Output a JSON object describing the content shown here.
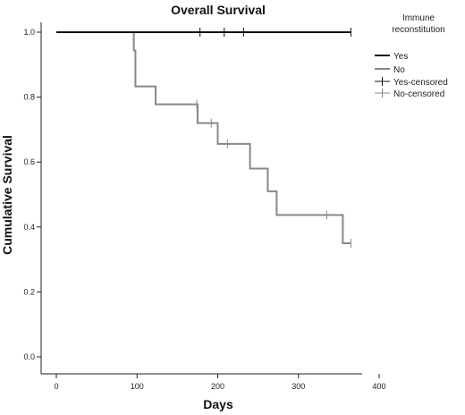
{
  "chart_data": {
    "type": "line",
    "title": "Overall Survival",
    "xlabel": "Days",
    "ylabel": "Cumulative Survival",
    "xlim": [
      0,
      400
    ],
    "ylim": [
      0,
      1.0
    ],
    "x_ticks": [
      "0",
      "100",
      "200",
      "300",
      "400"
    ],
    "y_ticks": [
      "0.0",
      "0.2",
      "0.4",
      "0.6",
      "0.8",
      "1.0"
    ],
    "grid": false,
    "legend": {
      "placement": "top-right",
      "title_lines": [
        "Immune",
        "reconstitution"
      ],
      "entries": [
        "Yes",
        "No",
        "Yes-censored",
        "No-censored"
      ]
    },
    "series": [
      {
        "name": "Yes",
        "color": "#111111",
        "steps": [
          {
            "x": 0,
            "y": 1.0
          },
          {
            "x": 365,
            "y": 1.0
          }
        ],
        "censored": [
          {
            "x": 178,
            "y": 1.0
          },
          {
            "x": 208,
            "y": 1.0
          },
          {
            "x": 232,
            "y": 1.0
          },
          {
            "x": 365,
            "y": 1.0
          }
        ]
      },
      {
        "name": "No",
        "color": "#888888",
        "steps": [
          {
            "x": 0,
            "y": 1.0
          },
          {
            "x": 96,
            "y": 0.944
          },
          {
            "x": 98,
            "y": 0.833
          },
          {
            "x": 123,
            "y": 0.778
          },
          {
            "x": 175,
            "y": 0.72
          },
          {
            "x": 200,
            "y": 0.656
          },
          {
            "x": 240,
            "y": 0.58
          },
          {
            "x": 262,
            "y": 0.51
          },
          {
            "x": 273,
            "y": 0.437
          },
          {
            "x": 355,
            "y": 0.35
          },
          {
            "x": 365,
            "y": 0.35
          }
        ],
        "censored": [
          {
            "x": 174,
            "y": 0.778
          },
          {
            "x": 192,
            "y": 0.72
          },
          {
            "x": 212,
            "y": 0.656
          },
          {
            "x": 335,
            "y": 0.437
          },
          {
            "x": 365,
            "y": 0.35
          }
        ]
      }
    ]
  }
}
